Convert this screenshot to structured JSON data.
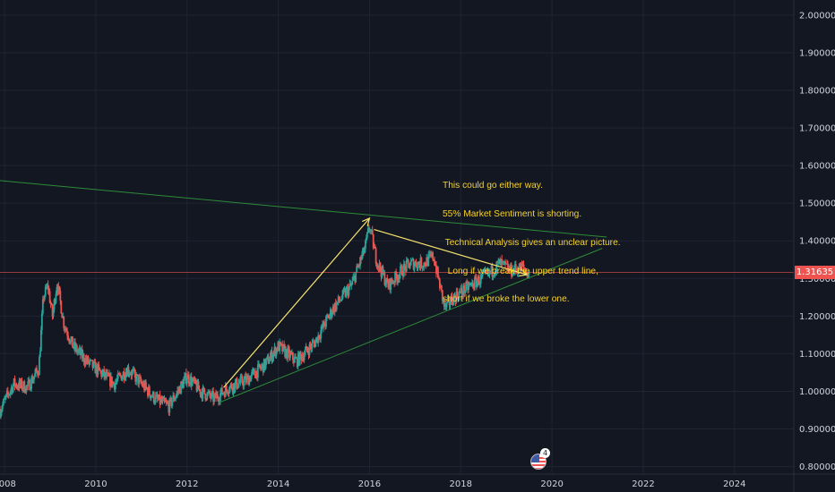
{
  "colors": {
    "background": "#131722",
    "grid": "#1f2433",
    "axis_text": "#d1d4dc",
    "candle_up": "#26a69a",
    "candle_down": "#ef5350",
    "trendline": "#2e8b3a",
    "arrow": "#f6e36f",
    "note_text": "#f6d32d",
    "price_line": "#ef5350"
  },
  "note": {
    "lines": [
      "This could go either way.",
      "55% Market Sentiment is shorting.",
      " Technical Analysis gives an unclear picture.",
      "  Long if we break the upper trend line,",
      "short if we broke the lower one."
    ]
  },
  "price_badge": {
    "label": "1.31635",
    "value": 1.31635
  },
  "event_badge": {
    "icon": "us-flag-icon",
    "count": "4"
  },
  "chart_data": {
    "type": "candlestick",
    "title": "",
    "xlabel": "",
    "ylabel": "",
    "grid": true,
    "price_axis_position": "right",
    "x_ticks": [
      "2008",
      "2010",
      "2012",
      "2014",
      "2016",
      "2018",
      "2020",
      "2022",
      "2024"
    ],
    "x_range": [
      2007.9,
      2025.3
    ],
    "y_ticks": [
      "0.80000",
      "0.90000",
      "1.00000",
      "1.10000",
      "1.20000",
      "1.30000",
      "1.40000",
      "1.50000",
      "1.60000",
      "1.70000",
      "1.80000",
      "1.90000",
      "2.00000"
    ],
    "y_range": [
      0.78,
      2.04
    ],
    "last_price": 1.31635,
    "series_path": [
      [
        2007.9,
        0.95
      ],
      [
        2008.2,
        1.02
      ],
      [
        2008.5,
        1.01
      ],
      [
        2008.75,
        1.06
      ],
      [
        2008.85,
        1.25
      ],
      [
        2008.95,
        1.28
      ],
      [
        2009.05,
        1.2
      ],
      [
        2009.15,
        1.29
      ],
      [
        2009.3,
        1.18
      ],
      [
        2009.5,
        1.12
      ],
      [
        2009.8,
        1.08
      ],
      [
        2010.1,
        1.05
      ],
      [
        2010.4,
        1.02
      ],
      [
        2010.7,
        1.06
      ],
      [
        2011.0,
        1.02
      ],
      [
        2011.3,
        0.98
      ],
      [
        2011.6,
        0.96
      ],
      [
        2011.8,
        1.0
      ],
      [
        2012.0,
        1.04
      ],
      [
        2012.3,
        1.0
      ],
      [
        2012.6,
        0.98
      ],
      [
        2012.9,
        1.01
      ],
      [
        2013.3,
        1.03
      ],
      [
        2013.7,
        1.07
      ],
      [
        2014.0,
        1.12
      ],
      [
        2014.4,
        1.08
      ],
      [
        2014.8,
        1.13
      ],
      [
        2015.2,
        1.22
      ],
      [
        2015.6,
        1.28
      ],
      [
        2015.9,
        1.38
      ],
      [
        2016.0,
        1.44
      ],
      [
        2016.15,
        1.35
      ],
      [
        2016.4,
        1.28
      ],
      [
        2016.7,
        1.32
      ],
      [
        2016.9,
        1.34
      ],
      [
        2017.2,
        1.34
      ],
      [
        2017.4,
        1.36
      ],
      [
        2017.65,
        1.22
      ],
      [
        2017.85,
        1.25
      ],
      [
        2018.2,
        1.28
      ],
      [
        2018.6,
        1.31
      ],
      [
        2018.85,
        1.34
      ],
      [
        2019.1,
        1.32
      ],
      [
        2019.35,
        1.33
      ],
      [
        2019.5,
        1.31
      ]
    ],
    "trendlines": [
      {
        "from": [
          2007.9,
          1.56
        ],
        "to": [
          2021.2,
          1.41
        ]
      },
      {
        "from": [
          2012.7,
          0.97
        ],
        "to": [
          2021.1,
          1.38
        ]
      }
    ],
    "arrows": [
      {
        "from": [
          2012.8,
          1.01
        ],
        "to": [
          2016.0,
          1.46
        ]
      },
      {
        "from": [
          2016.1,
          1.43
        ],
        "to": [
          2019.45,
          1.31
        ]
      }
    ]
  }
}
